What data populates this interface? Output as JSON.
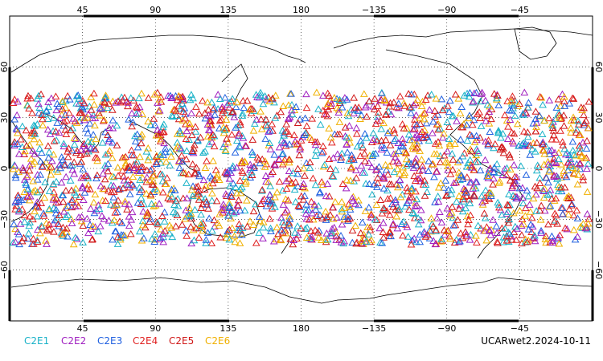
{
  "map": {
    "projection": "cylindrical-equidistant",
    "center_longitude": 180,
    "lon_range": [
      0,
      360
    ],
    "lat_range": [
      -90,
      90
    ],
    "top_lon_labels": [
      "45",
      "90",
      "135",
      "180",
      "−135",
      "−90",
      "−45"
    ],
    "bottom_lon_labels": [
      "45",
      "90",
      "135",
      "180",
      "−135",
      "−90",
      "−45"
    ],
    "lat_labels": [
      "60",
      "30",
      "0",
      "−30",
      "−60"
    ],
    "grid": "dotted",
    "land_outline_color": "#000000"
  },
  "legend": {
    "items": [
      {
        "label": "C2E1",
        "color": "#1ab2c8"
      },
      {
        "label": "C2E2",
        "color": "#a020c0"
      },
      {
        "label": "C2E3",
        "color": "#2060e0"
      },
      {
        "label": "C2E4",
        "color": "#e02020"
      },
      {
        "label": "C2E5",
        "color": "#d01818"
      },
      {
        "label": "C2E6",
        "color": "#f0b000"
      }
    ]
  },
  "caption": "UCARwet2.2024-10-11",
  "occultations": {
    "marker": "triangle-outline",
    "lat_band": [
      -45,
      45
    ],
    "coverage": "global-longitudes"
  }
}
